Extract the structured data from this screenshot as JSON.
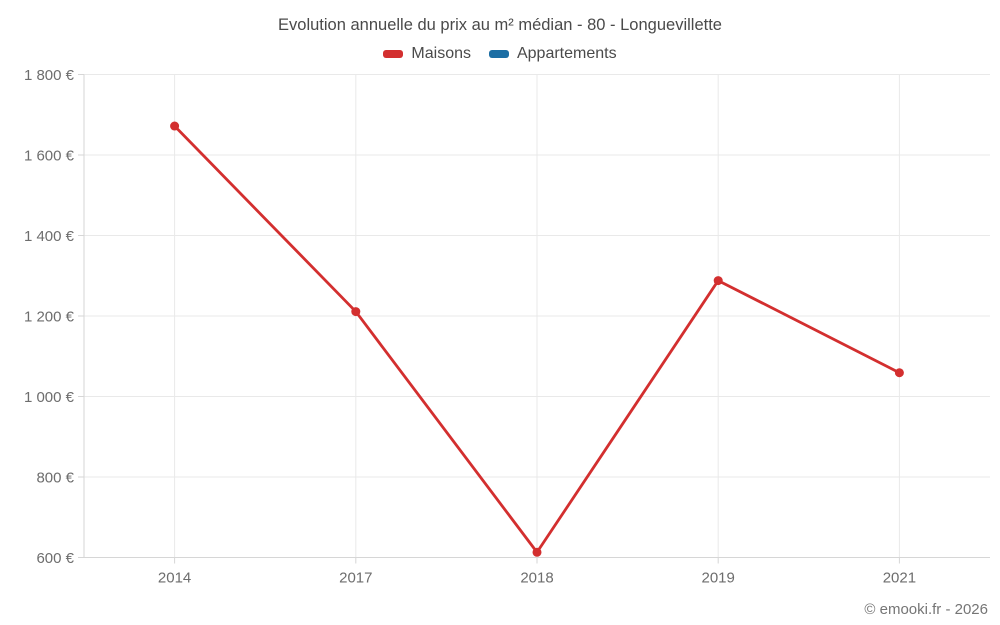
{
  "header": {
    "title": "Evolution annuelle du prix au m² médian - 80 - Longuevillette"
  },
  "legend": {
    "items": [
      {
        "label": "Maisons",
        "color": "#d32f2f"
      },
      {
        "label": "Appartements",
        "color": "#1c6ea4"
      }
    ]
  },
  "footer": {
    "credit": "© emooki.fr - 2026"
  },
  "colors": {
    "grid": "#e9e9e9",
    "axis": "#d6d6d6",
    "axis_text": "#6d6d6d"
  },
  "chart_data": {
    "type": "line",
    "title": "Evolution annuelle du prix au m² médian - 80 - Longuevillette",
    "categories": [
      "2014",
      "2017",
      "2018",
      "2019",
      "2021"
    ],
    "series": [
      {
        "name": "Maisons",
        "color": "#d32f2f",
        "values": [
          1672,
          1211,
          613,
          1288,
          1059
        ]
      },
      {
        "name": "Appartements",
        "color": "#1c6ea4",
        "values": []
      }
    ],
    "xlabel": "",
    "ylabel": "",
    "ylim": [
      600,
      1800
    ],
    "y_tick_step": 200,
    "y_tick_suffix": " €",
    "grid": true,
    "legend_position": "top",
    "markers": true
  }
}
